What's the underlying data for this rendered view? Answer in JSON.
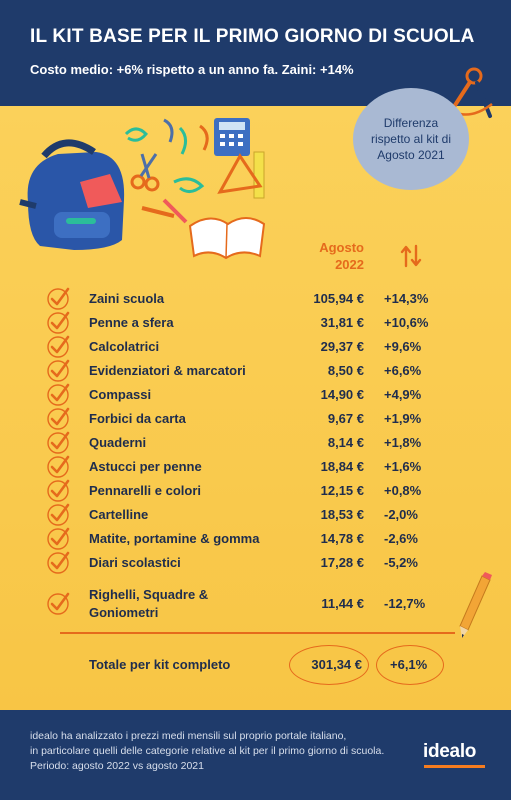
{
  "header": {
    "title": "IL KIT BASE PER IL PRIMO GIORNO DI SCUOLA",
    "subtitle": "Costo medio: +6% rispetto a un anno fa. Zaini: +14%"
  },
  "badge": {
    "text": "Differenza rispetto al kit di Agosto 2021"
  },
  "table": {
    "column_header": "Agosto 2022",
    "diff_icon": "up-down-arrows-icon",
    "rows": [
      {
        "name": "Zaini scuola",
        "price": "105,94 €",
        "diff": "+14,3%"
      },
      {
        "name": "Penne a sfera",
        "price": "31,81 €",
        "diff": "+10,6%"
      },
      {
        "name": "Calcolatrici",
        "price": "29,37 €",
        "diff": "+9,6%"
      },
      {
        "name": "Evidenziatori & marcatori",
        "price": "8,50 €",
        "diff": "+6,6%"
      },
      {
        "name": "Compassi",
        "price": "14,90 €",
        "diff": "+4,9%"
      },
      {
        "name": "Forbici da carta",
        "price": "9,67 €",
        "diff": "+1,9%"
      },
      {
        "name": "Quaderni",
        "price": "8,14 €",
        "diff": "+1,8%"
      },
      {
        "name": "Astucci per penne",
        "price": "18,84 €",
        "diff": "+1,6%"
      },
      {
        "name": "Pennarelli e colori",
        "price": "12,15 €",
        "diff": "+0,8%"
      },
      {
        "name": "Cartelline",
        "price": "18,53 €",
        "diff": "-2,0%"
      },
      {
        "name": "Matite, portamine & gomma",
        "price": "14,78 €",
        "diff": "-2,6%"
      },
      {
        "name": "Diari scolastici",
        "price": "17,28 €",
        "diff": "-5,2%"
      },
      {
        "name": "Righelli, Squadre & Goniometri",
        "price": "11,44 €",
        "diff": "-12,7%"
      }
    ],
    "total": {
      "name": "Totale per kit completo",
      "price": "301,34 €",
      "diff": "+6,1%"
    }
  },
  "footer": {
    "lines": [
      "idealo ha analizzato i prezzi medi mensili sul proprio portale italiano,",
      "in particolare quelli delle categorie relative al kit per il primo giorno di scuola.",
      "Periodo: agosto 2022 vs agosto 2021"
    ],
    "logo": "idealo"
  },
  "colors": {
    "navy": "#1f3b6b",
    "background": "#f9c84a",
    "accent_orange": "#e56a1c",
    "badge_blue": "#a9b9d3"
  }
}
